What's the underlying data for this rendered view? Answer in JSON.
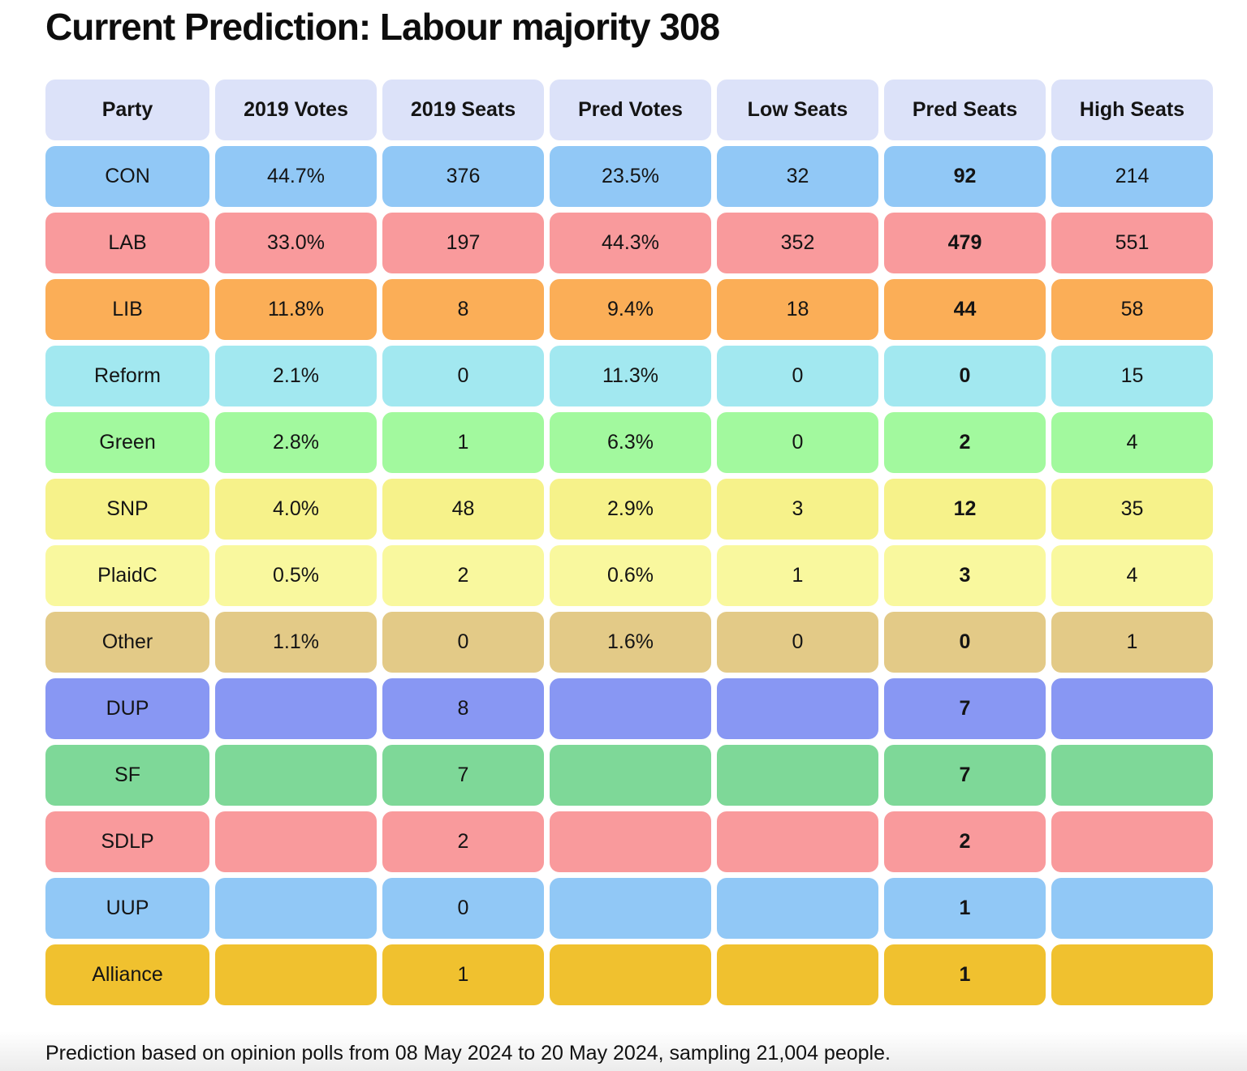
{
  "title": "Current Prediction: Labour majority 308",
  "footer": "Prediction based on opinion polls from 08 May 2024 to 20 May 2024, sampling 21,004 people.",
  "colors": {
    "header_bg": "#dce2f9",
    "text": "#141414",
    "row_colors": [
      "#91c8f6",
      "#f99a9c",
      "#fbae57",
      "#a2e8f0",
      "#a2f99e",
      "#f6f28a",
      "#f9f89e",
      "#e3ca87",
      "#8897f3",
      "#7ed898",
      "#f99a9c",
      "#91c8f6",
      "#f0c12f"
    ]
  },
  "chart_data": {
    "type": "table",
    "title": "Current Prediction: Labour majority 308",
    "columns": [
      "Party",
      "2019 Votes",
      "2019 Seats",
      "Pred Votes",
      "Low Seats",
      "Pred Seats",
      "High Seats"
    ],
    "bold_column_index": 5,
    "rows": [
      [
        "CON",
        "44.7%",
        "376",
        "23.5%",
        "32",
        "92",
        "214"
      ],
      [
        "LAB",
        "33.0%",
        "197",
        "44.3%",
        "352",
        "479",
        "551"
      ],
      [
        "LIB",
        "11.8%",
        "8",
        "9.4%",
        "18",
        "44",
        "58"
      ],
      [
        "Reform",
        "2.1%",
        "0",
        "11.3%",
        "0",
        "0",
        "15"
      ],
      [
        "Green",
        "2.8%",
        "1",
        "6.3%",
        "0",
        "2",
        "4"
      ],
      [
        "SNP",
        "4.0%",
        "48",
        "2.9%",
        "3",
        "12",
        "35"
      ],
      [
        "PlaidC",
        "0.5%",
        "2",
        "0.6%",
        "1",
        "3",
        "4"
      ],
      [
        "Other",
        "1.1%",
        "0",
        "1.6%",
        "0",
        "0",
        "1"
      ],
      [
        "DUP",
        "",
        "8",
        "",
        "",
        "7",
        ""
      ],
      [
        "SF",
        "",
        "7",
        "",
        "",
        "7",
        ""
      ],
      [
        "SDLP",
        "",
        "2",
        "",
        "",
        "2",
        ""
      ],
      [
        "UUP",
        "",
        "0",
        "",
        "",
        "1",
        ""
      ],
      [
        "Alliance",
        "",
        "1",
        "",
        "",
        "1",
        ""
      ]
    ]
  }
}
